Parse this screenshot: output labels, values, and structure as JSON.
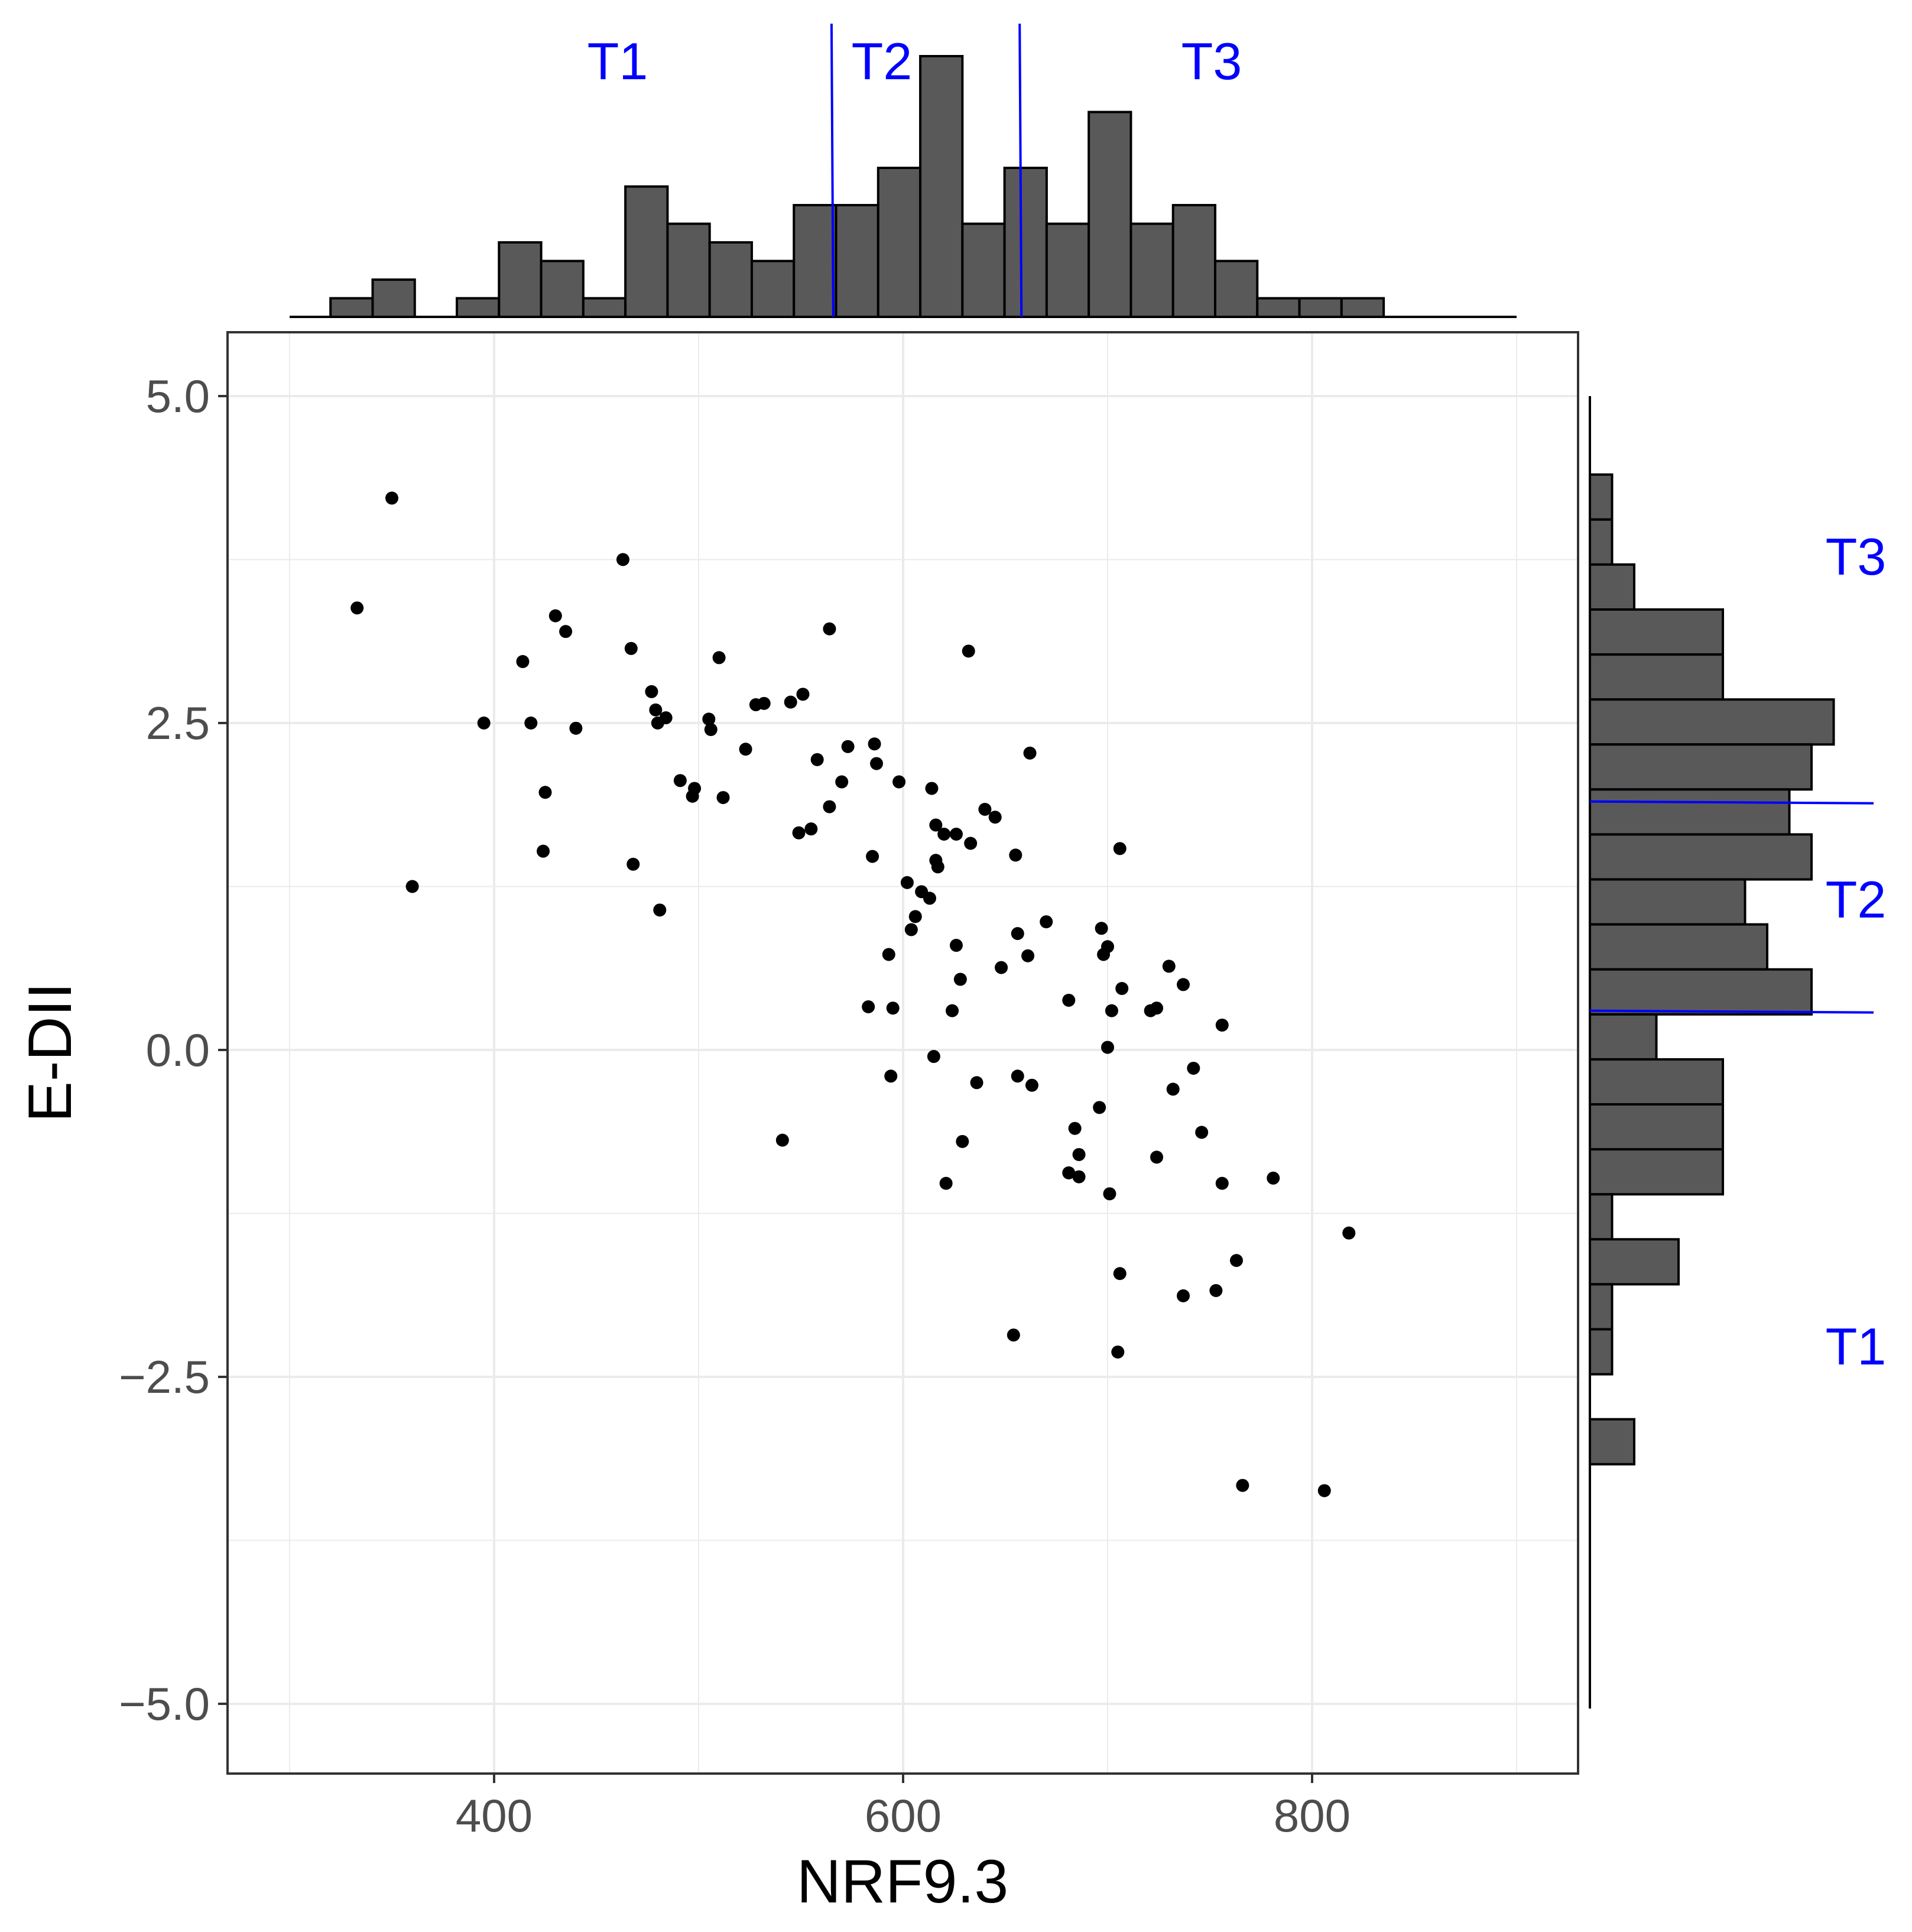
{
  "chart_data": {
    "type": "scatter",
    "xlabel": "NRF9.3",
    "ylabel": "E-DII",
    "xlim": [
      270,
      930
    ],
    "ylim": [
      -5.5,
      5.5
    ],
    "x_ticks": [
      400,
      600,
      800
    ],
    "x_tick_labels": [
      "400",
      "600",
      "800"
    ],
    "y_ticks": [
      5.0,
      2.5,
      0.0,
      -2.5,
      -5.0
    ],
    "y_tick_labels": [
      "5.0",
      "2.5",
      "0.0",
      "−2.5",
      "−5.0"
    ],
    "grid": true,
    "points": [
      {
        "x": 350,
        "y": 4.22
      },
      {
        "x": 333,
        "y": 3.38
      },
      {
        "x": 360,
        "y": 1.25
      },
      {
        "x": 395,
        "y": 2.5
      },
      {
        "x": 414,
        "y": 2.97
      },
      {
        "x": 418,
        "y": 2.5
      },
      {
        "x": 424,
        "y": 1.52
      },
      {
        "x": 425,
        "y": 1.97
      },
      {
        "x": 430,
        "y": 3.32
      },
      {
        "x": 435,
        "y": 3.2
      },
      {
        "x": 440,
        "y": 2.46
      },
      {
        "x": 463,
        "y": 3.75
      },
      {
        "x": 467,
        "y": 3.07
      },
      {
        "x": 468,
        "y": 1.42
      },
      {
        "x": 477,
        "y": 2.74
      },
      {
        "x": 479,
        "y": 2.6
      },
      {
        "x": 480,
        "y": 2.5
      },
      {
        "x": 481,
        "y": 1.07
      },
      {
        "x": 484,
        "y": 2.54
      },
      {
        "x": 491,
        "y": 2.06
      },
      {
        "x": 497,
        "y": 1.94
      },
      {
        "x": 498,
        "y": 2.0
      },
      {
        "x": 505,
        "y": 2.53
      },
      {
        "x": 506,
        "y": 2.45
      },
      {
        "x": 510,
        "y": 3.0
      },
      {
        "x": 512,
        "y": 1.93
      },
      {
        "x": 523,
        "y": 2.3
      },
      {
        "x": 528,
        "y": 2.64
      },
      {
        "x": 532,
        "y": 2.65
      },
      {
        "x": 541,
        "y": -0.69
      },
      {
        "x": 545,
        "y": 2.66
      },
      {
        "x": 549,
        "y": 1.66
      },
      {
        "x": 551,
        "y": 2.72
      },
      {
        "x": 555,
        "y": 1.69
      },
      {
        "x": 558,
        "y": 2.22
      },
      {
        "x": 564,
        "y": 3.22
      },
      {
        "x": 564,
        "y": 1.86
      },
      {
        "x": 570,
        "y": 2.05
      },
      {
        "x": 573,
        "y": 2.32
      },
      {
        "x": 583,
        "y": 0.33
      },
      {
        "x": 585,
        "y": 1.48
      },
      {
        "x": 586,
        "y": 2.34
      },
      {
        "x": 587,
        "y": 2.19
      },
      {
        "x": 593,
        "y": 0.73
      },
      {
        "x": 594,
        "y": -0.2
      },
      {
        "x": 595,
        "y": 0.32
      },
      {
        "x": 598,
        "y": 2.05
      },
      {
        "x": 602,
        "y": 1.28
      },
      {
        "x": 604,
        "y": 0.92
      },
      {
        "x": 606,
        "y": 1.02
      },
      {
        "x": 609,
        "y": 1.21
      },
      {
        "x": 613,
        "y": 1.16
      },
      {
        "x": 614,
        "y": 2.0
      },
      {
        "x": 615,
        "y": -0.05
      },
      {
        "x": 616,
        "y": 1.72
      },
      {
        "x": 616,
        "y": 1.45
      },
      {
        "x": 617,
        "y": 1.4
      },
      {
        "x": 620,
        "y": 1.65
      },
      {
        "x": 621,
        "y": -1.02
      },
      {
        "x": 624,
        "y": 0.3
      },
      {
        "x": 626,
        "y": 0.8
      },
      {
        "x": 626,
        "y": 1.65
      },
      {
        "x": 628,
        "y": 0.54
      },
      {
        "x": 629,
        "y": -0.7
      },
      {
        "x": 632,
        "y": 3.05
      },
      {
        "x": 633,
        "y": 1.58
      },
      {
        "x": 636,
        "y": -0.25
      },
      {
        "x": 640,
        "y": 1.84
      },
      {
        "x": 645,
        "y": 1.78
      },
      {
        "x": 648,
        "y": 0.63
      },
      {
        "x": 654,
        "y": -2.18
      },
      {
        "x": 655,
        "y": 1.49
      },
      {
        "x": 656,
        "y": 0.89
      },
      {
        "x": 656,
        "y": -0.2
      },
      {
        "x": 661,
        "y": 0.72
      },
      {
        "x": 662,
        "y": 2.27
      },
      {
        "x": 663,
        "y": -0.27
      },
      {
        "x": 670,
        "y": 0.98
      },
      {
        "x": 681,
        "y": 0.38
      },
      {
        "x": 681,
        "y": -0.94
      },
      {
        "x": 684,
        "y": -0.6
      },
      {
        "x": 686,
        "y": -0.8
      },
      {
        "x": 686,
        "y": -0.97
      },
      {
        "x": 696,
        "y": -0.44
      },
      {
        "x": 697,
        "y": 0.93
      },
      {
        "x": 698,
        "y": 0.73
      },
      {
        "x": 700,
        "y": 0.02
      },
      {
        "x": 700,
        "y": 0.79
      },
      {
        "x": 701,
        "y": -1.1
      },
      {
        "x": 702,
        "y": 0.3
      },
      {
        "x": 705,
        "y": -2.31
      },
      {
        "x": 706,
        "y": 1.54
      },
      {
        "x": 706,
        "y": -1.71
      },
      {
        "x": 707,
        "y": 0.47
      },
      {
        "x": 721,
        "y": 0.3
      },
      {
        "x": 724,
        "y": 0.32
      },
      {
        "x": 724,
        "y": -0.82
      },
      {
        "x": 730,
        "y": 0.64
      },
      {
        "x": 732,
        "y": -0.3
      },
      {
        "x": 737,
        "y": 0.5
      },
      {
        "x": 737,
        "y": -1.88
      },
      {
        "x": 742,
        "y": -0.14
      },
      {
        "x": 746,
        "y": -0.63
      },
      {
        "x": 753,
        "y": -1.84
      },
      {
        "x": 756,
        "y": 0.19
      },
      {
        "x": 756,
        "y": -1.02
      },
      {
        "x": 763,
        "y": -1.61
      },
      {
        "x": 766,
        "y": -3.33
      },
      {
        "x": 781,
        "y": -0.98
      },
      {
        "x": 806,
        "y": -3.37
      },
      {
        "x": 818,
        "y": -1.4
      }
    ],
    "x_histogram": {
      "bin_width": 20.6,
      "bin_start": 320,
      "counts": [
        1,
        2,
        0,
        1,
        4,
        3,
        1,
        7,
        5,
        4,
        3,
        6,
        6,
        8,
        14,
        5,
        8,
        5,
        11,
        5,
        6,
        3,
        1,
        1,
        1
      ],
      "tertile_cuts": [
        565,
        657
      ],
      "tertile_labels": [
        "T1",
        "T2",
        "T3"
      ]
    },
    "y_histogram": {
      "bin_width": 0.344,
      "bin_top": 4.4,
      "counts": [
        1,
        1,
        2,
        6,
        6,
        11,
        10,
        9,
        10,
        7,
        8,
        10,
        3,
        6,
        6,
        6,
        1,
        4,
        1,
        1,
        0,
        2
      ],
      "tertile_cuts": [
        1.9,
        0.3
      ],
      "tertile_labels": [
        "T3",
        "T2",
        "T1"
      ]
    }
  }
}
